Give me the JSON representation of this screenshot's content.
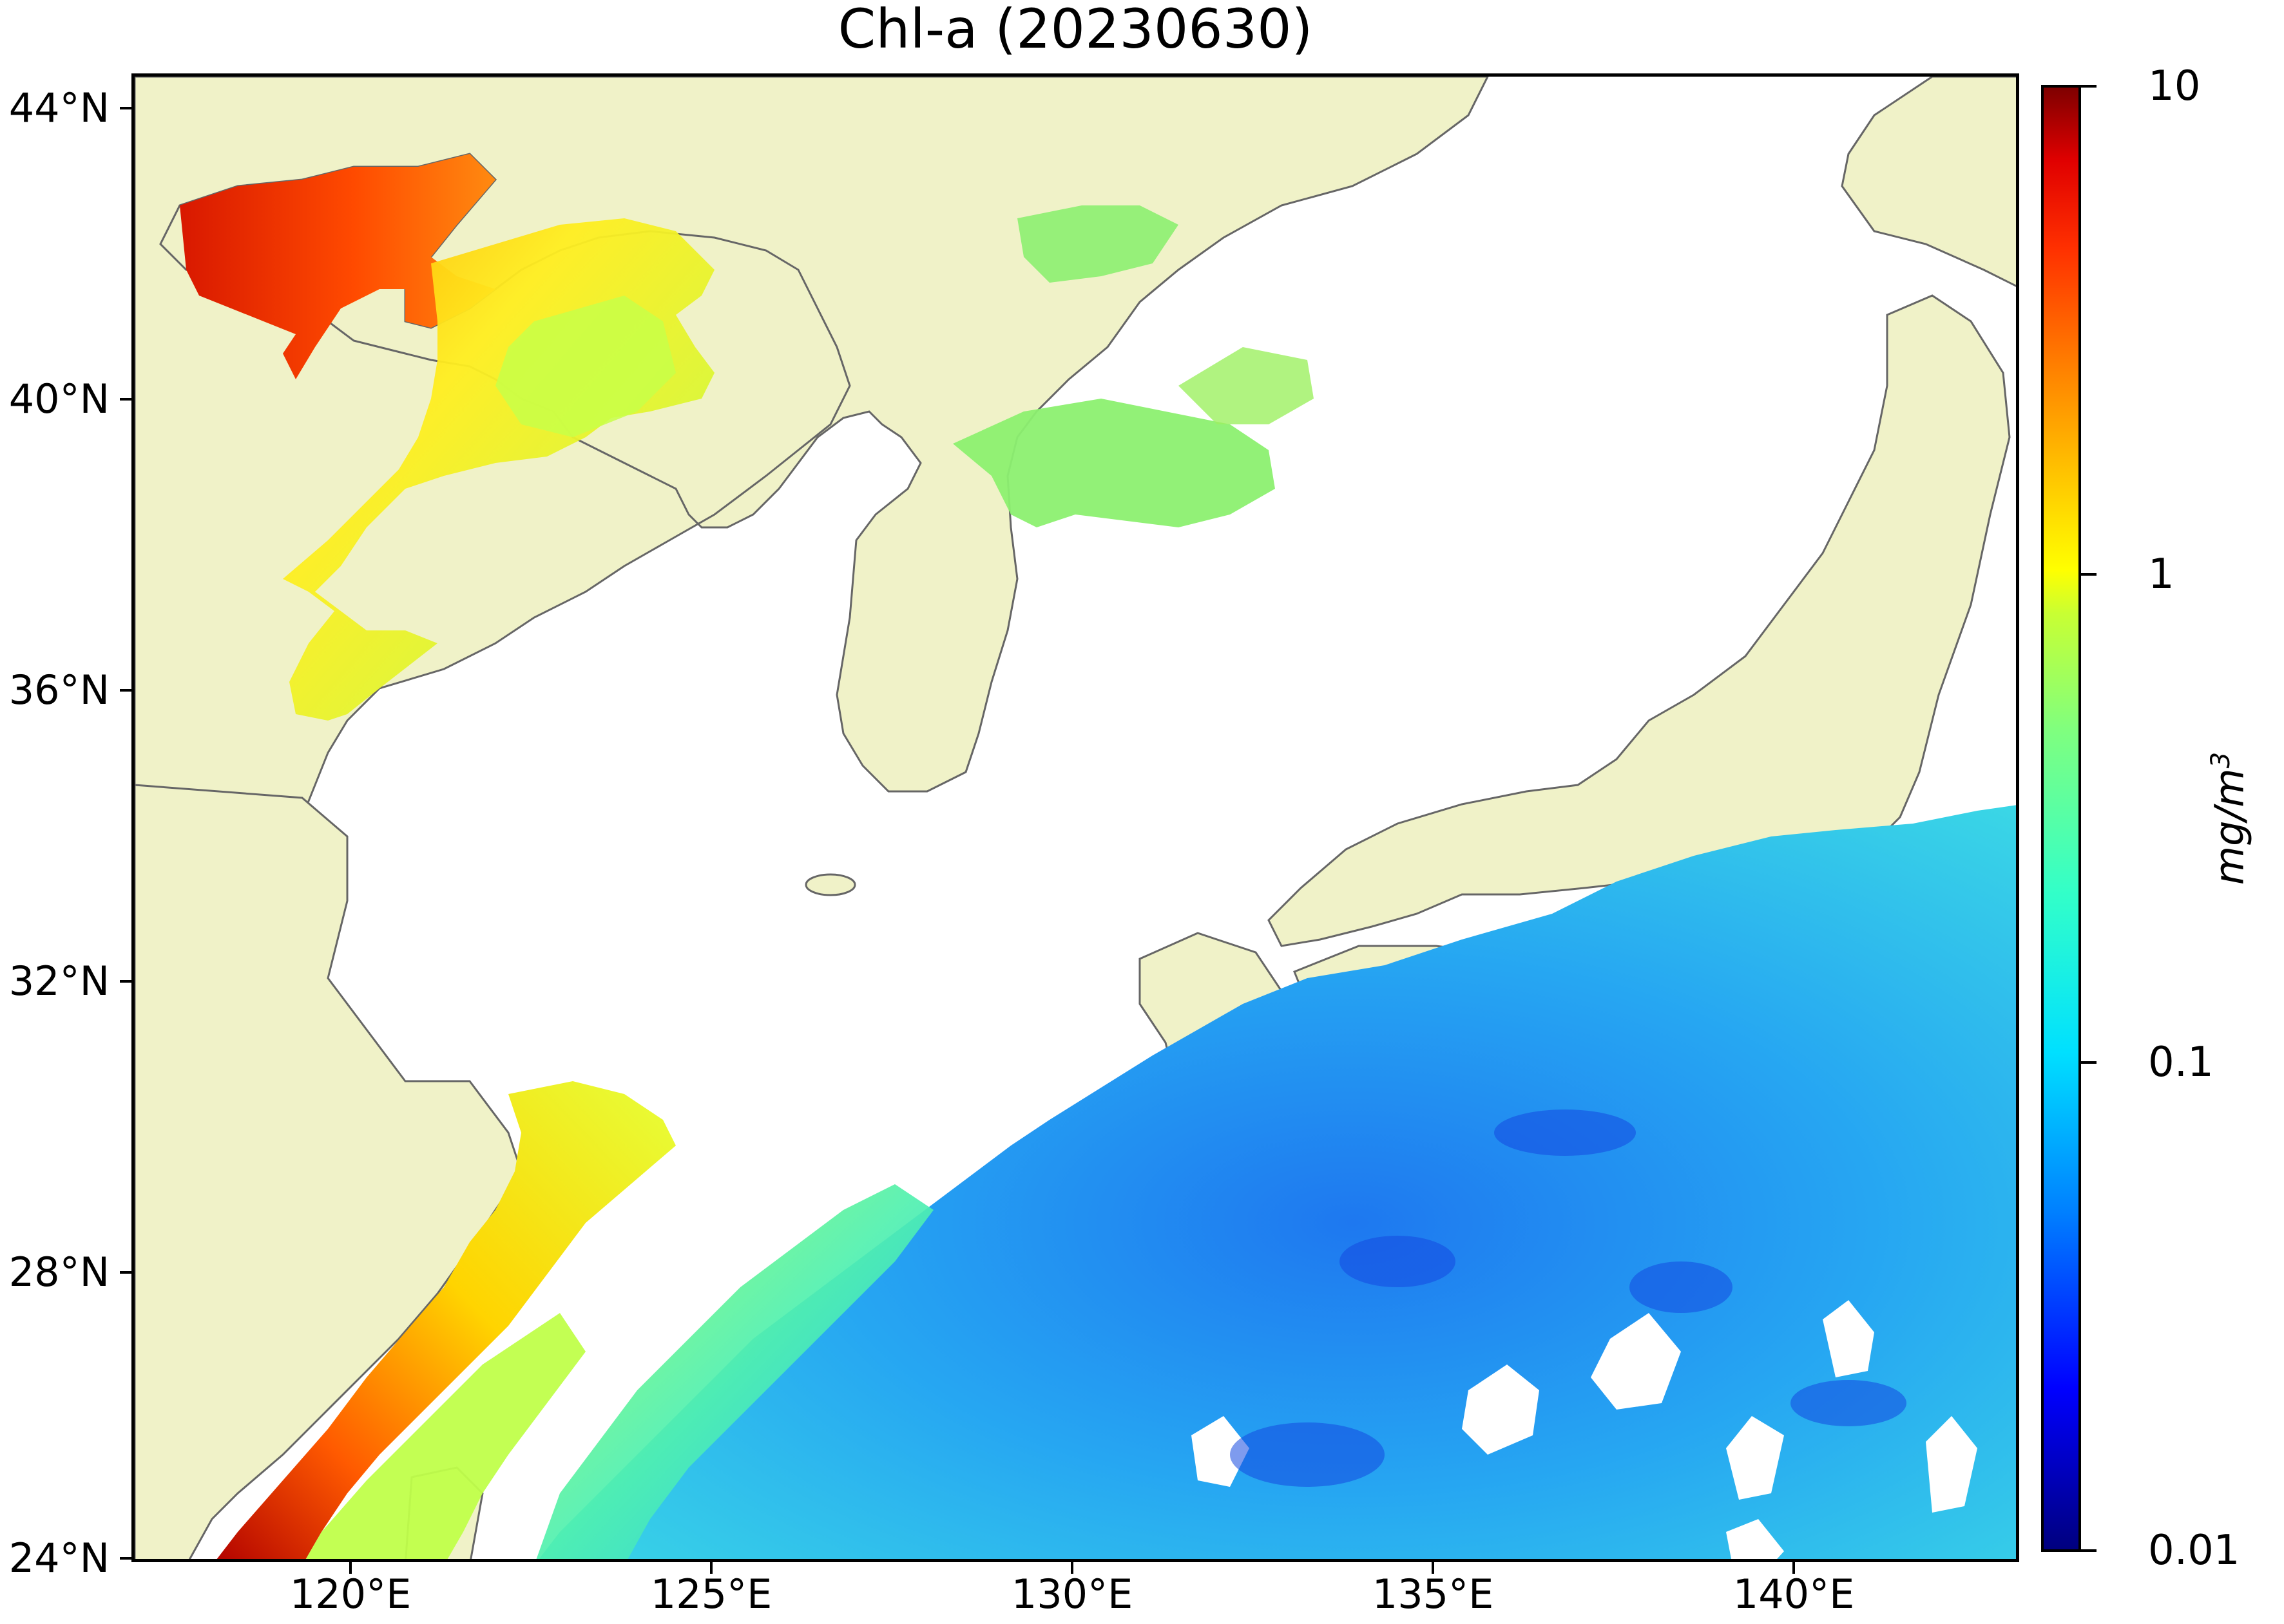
{
  "title": "Chl-a (20230630)",
  "map": {
    "type": "geographic chlorophyll-a concentration map",
    "projection": "equirectangular",
    "lon_range": [
      116.7,
      143.0
    ],
    "lat_range": [
      24.0,
      44.5
    ],
    "land_color": "#f0f2c8",
    "coastline_color": "#666666",
    "no_data_color": "#ffffff",
    "lat_ticks": [
      {
        "value": 44,
        "label": "44°N"
      },
      {
        "value": 40,
        "label": "40°N"
      },
      {
        "value": 36,
        "label": "36°N"
      },
      {
        "value": 32,
        "label": "32°N"
      },
      {
        "value": 28,
        "label": "28°N"
      },
      {
        "value": 24,
        "label": "24°N"
      }
    ],
    "lon_ticks": [
      {
        "value": 120,
        "label": "120°E"
      },
      {
        "value": 125,
        "label": "125°E"
      },
      {
        "value": 130,
        "label": "130°E"
      },
      {
        "value": 135,
        "label": "135°E"
      },
      {
        "value": 140,
        "label": "140°E"
      }
    ]
  },
  "colorbar": {
    "scale": "log",
    "range": [
      0.01,
      10
    ],
    "colormap": "jet",
    "unit": "mg/m",
    "unit_exponent": "3",
    "ticks": [
      {
        "value": 10,
        "label": "10"
      },
      {
        "value": 1,
        "label": "1"
      },
      {
        "value": 0.1,
        "label": "0.1"
      },
      {
        "value": 0.01,
        "label": "0.01"
      }
    ]
  }
}
